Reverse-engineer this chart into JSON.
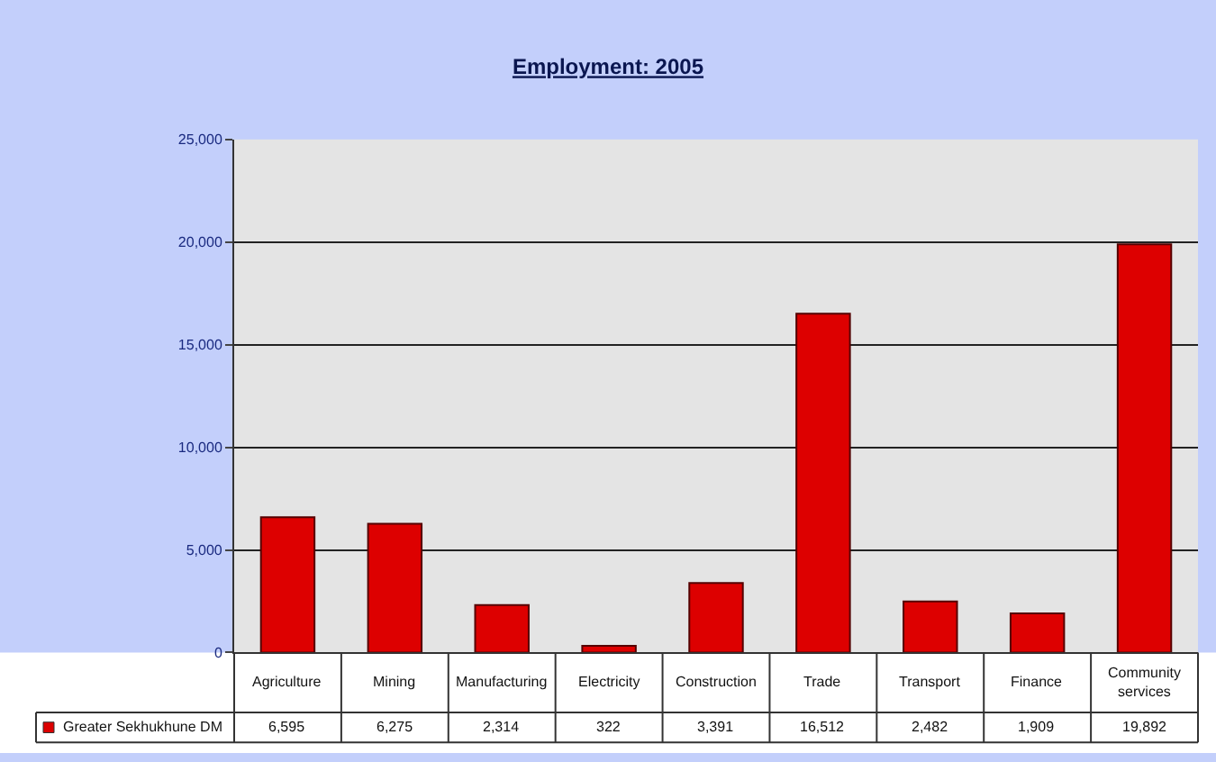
{
  "chart_data": {
    "type": "bar",
    "title": "Employment: 2005",
    "categories": [
      "Agriculture",
      "Mining",
      "Manufacturing",
      "Electricity",
      "Construction",
      "Trade",
      "Transport",
      "Finance",
      "Community services"
    ],
    "series": [
      {
        "name": "Greater Sekhukhune DM",
        "color": "#dd0000",
        "values": [
          6595,
          6275,
          2314,
          322,
          3391,
          16512,
          2482,
          1909,
          19892
        ],
        "value_labels": [
          "6,595",
          "6,275",
          "2,314",
          "322",
          "3,391",
          "16,512",
          "2,482",
          "1,909",
          "19,892"
        ]
      }
    ],
    "ylim": [
      0,
      25000
    ],
    "yticks": [
      {
        "value": 0,
        "label": "0"
      },
      {
        "value": 5000,
        "label": "5,000"
      },
      {
        "value": 10000,
        "label": "10,000"
      },
      {
        "value": 15000,
        "label": "15,000"
      },
      {
        "value": 20000,
        "label": "20,000"
      },
      {
        "value": 25000,
        "label": "25,000"
      }
    ],
    "grid": "y",
    "legend": "bottom left"
  }
}
